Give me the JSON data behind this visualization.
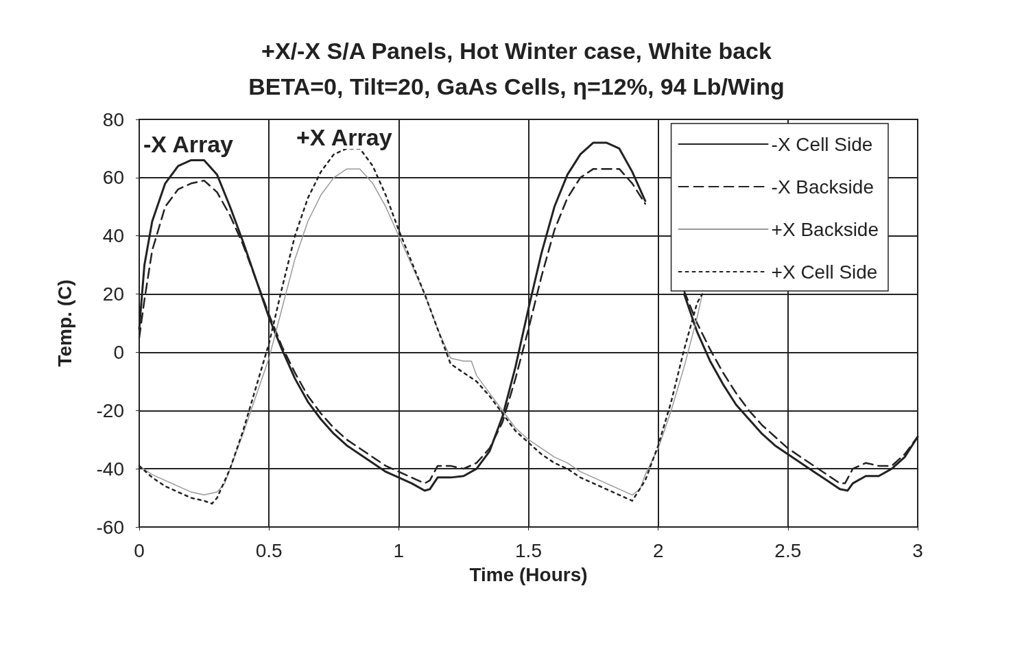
{
  "chart_data": {
    "type": "line",
    "title": "+X/-X S/A Panels, Hot Winter case, White back",
    "subtitle": "BETA=0, Tilt=20, GaAs Cells, η=12%, 94 Lb/Wing",
    "xlabel": "Time (Hours)",
    "ylabel": "Temp. (C)",
    "xlim": [
      0,
      3
    ],
    "xticks": [
      0,
      0.5,
      1,
      1.5,
      2,
      2.5,
      3
    ],
    "ylim": [
      -60,
      80
    ],
    "yticks": [
      -60,
      -40,
      -20,
      0,
      20,
      40,
      60,
      80
    ],
    "grid": true,
    "legend": "top right",
    "marker": "none",
    "annotations": [
      "-X Array",
      "+X Array"
    ],
    "series": [
      {
        "name": "-X Cell Side",
        "color": "#222222",
        "line_style": "solid",
        "x": [
          0,
          0.02,
          0.05,
          0.1,
          0.15,
          0.2,
          0.25,
          0.3,
          0.35,
          0.4,
          0.45,
          0.5,
          0.55,
          0.6,
          0.65,
          0.7,
          0.75,
          0.8,
          0.85,
          0.9,
          0.95,
          1,
          1.05,
          1.1,
          1.12,
          1.15,
          1.2,
          1.25,
          1.3,
          1.35,
          1.4,
          1.45,
          1.5,
          1.55,
          1.6,
          1.65,
          1.7,
          1.75,
          1.8,
          1.85,
          1.9,
          1.95,
          2,
          2.05,
          2.1,
          2.15,
          2.2,
          2.25,
          2.3,
          2.35,
          2.4,
          2.45,
          2.5,
          2.55,
          2.6,
          2.65,
          2.7,
          2.73,
          2.75,
          2.8,
          2.85,
          2.9,
          2.95,
          3
        ],
        "values": [
          8,
          30,
          45,
          58,
          64,
          66,
          66,
          61,
          50,
          38,
          25,
          12,
          1,
          -9,
          -17,
          -23,
          -28,
          -32,
          -35,
          -38,
          -41,
          -43,
          -45,
          -47.5,
          -47,
          -43,
          -43,
          -42.5,
          -40,
          -34,
          -22,
          -5,
          15,
          34,
          50,
          61,
          68,
          72,
          72,
          70,
          62,
          52,
          null,
          null,
          20,
          7,
          -3,
          -11,
          -18,
          -23,
          -28,
          -32,
          -35,
          -38,
          -41,
          -44,
          -47,
          -47.5,
          -45,
          -42.5,
          -42.5,
          -40,
          -36,
          -29
        ]
      },
      {
        "name": "-X Backside",
        "color": "#222222",
        "line_style": "dashed",
        "x": [
          0,
          0.02,
          0.05,
          0.1,
          0.15,
          0.2,
          0.25,
          0.3,
          0.35,
          0.4,
          0.45,
          0.5,
          0.55,
          0.6,
          0.65,
          0.7,
          0.75,
          0.8,
          0.85,
          0.9,
          0.95,
          1,
          1.05,
          1.1,
          1.12,
          1.15,
          1.2,
          1.25,
          1.3,
          1.35,
          1.4,
          1.45,
          1.5,
          1.55,
          1.6,
          1.65,
          1.7,
          1.75,
          1.8,
          1.85,
          1.9,
          1.95,
          2,
          2.05,
          2.1,
          2.15,
          2.2,
          2.25,
          2.3,
          2.35,
          2.4,
          2.45,
          2.5,
          2.55,
          2.6,
          2.65,
          2.7,
          2.72,
          2.75,
          2.8,
          2.85,
          2.9,
          2.95,
          3
        ],
        "values": [
          5,
          18,
          35,
          50,
          56,
          58,
          59,
          55,
          47,
          37,
          25,
          13,
          2,
          -7,
          -15,
          -21,
          -26,
          -30,
          -33,
          -36,
          -39,
          -41,
          -43,
          -45,
          -44,
          -39,
          -39,
          -40,
          -38,
          -33,
          -24,
          -9,
          8,
          26,
          42,
          53,
          60,
          63,
          63,
          63,
          58,
          51,
          null,
          null,
          21,
          10,
          1,
          -7,
          -14,
          -20,
          -25,
          -29,
          -33,
          -36,
          -39,
          -42,
          -45,
          -45,
          -40,
          -38,
          -39,
          -39,
          -35,
          -29
        ]
      },
      {
        "name": "+X Backside",
        "color": "#999999",
        "line_style": "solid",
        "x": [
          0,
          0.05,
          0.1,
          0.15,
          0.2,
          0.25,
          0.3,
          0.33,
          0.35,
          0.4,
          0.45,
          0.5,
          0.55,
          0.6,
          0.65,
          0.7,
          0.75,
          0.8,
          0.85,
          0.9,
          0.95,
          1,
          1.05,
          1.1,
          1.15,
          1.2,
          1.25,
          1.28,
          1.3,
          1.35,
          1.4,
          1.45,
          1.5,
          1.55,
          1.6,
          1.65,
          1.7,
          1.75,
          1.8,
          1.85,
          1.9,
          1.93,
          1.95,
          2,
          2.05,
          2.1,
          2.15,
          2.17
        ],
        "values": [
          -39,
          -42,
          -44,
          -46,
          -48,
          -49,
          -48,
          -45,
          -40,
          -28,
          -15,
          -2,
          15,
          32,
          45,
          54,
          60,
          63,
          63,
          58,
          50,
          40,
          30,
          20,
          8,
          -2,
          -3,
          -3,
          -8,
          -14,
          -20,
          -26,
          -30,
          -33,
          -36,
          -38,
          -41,
          -43,
          -45,
          -47,
          -49,
          -47,
          -42,
          -33,
          -20,
          -5,
          12,
          20
        ]
      },
      {
        "name": "+X Cell Side",
        "color": "#222222",
        "line_style": "dotted",
        "x": [
          0,
          0.05,
          0.1,
          0.15,
          0.2,
          0.25,
          0.28,
          0.3,
          0.35,
          0.4,
          0.45,
          0.5,
          0.55,
          0.6,
          0.65,
          0.7,
          0.75,
          0.8,
          0.85,
          0.9,
          0.95,
          1,
          1.05,
          1.1,
          1.15,
          1.2,
          1.25,
          1.3,
          1.35,
          1.4,
          1.45,
          1.5,
          1.55,
          1.6,
          1.65,
          1.7,
          1.75,
          1.8,
          1.85,
          1.9,
          1.95,
          2,
          2.05,
          2.1,
          2.15,
          2.17
        ],
        "values": [
          -39,
          -43,
          -46,
          -48,
          -50,
          -51,
          -52,
          -50,
          -40,
          -27,
          -12,
          3,
          22,
          40,
          53,
          62,
          68,
          70,
          70,
          64,
          54,
          42,
          31,
          20,
          8,
          -4,
          -7,
          -10,
          -15,
          -21,
          -27,
          -31,
          -35,
          -38,
          -40,
          -43,
          -45,
          -47,
          -49,
          -51,
          -44,
          -32,
          -17,
          1,
          17,
          20
        ]
      }
    ]
  }
}
